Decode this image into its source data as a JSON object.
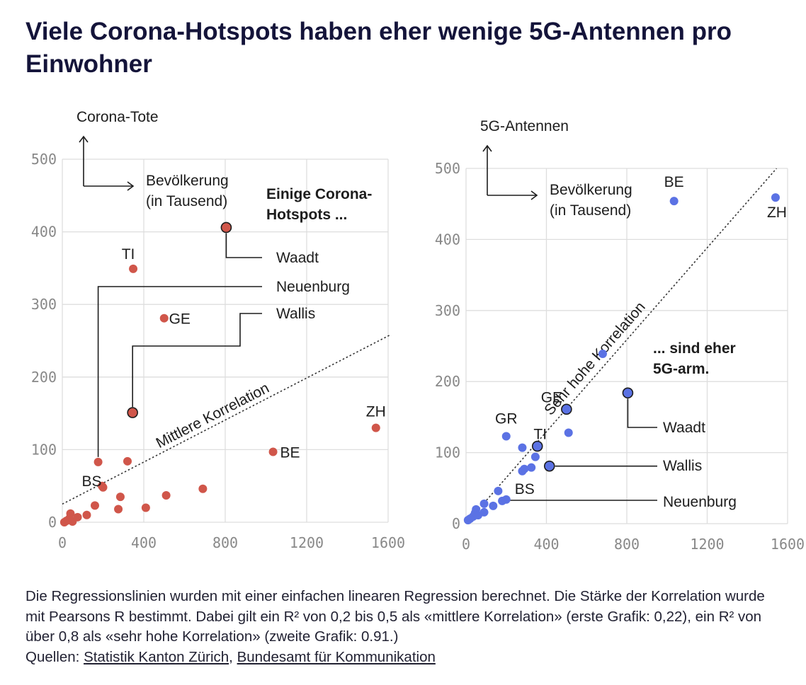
{
  "title": "Viele Corona-Hotspots haben eher wenige 5G-Antennen pro Einwohner",
  "footer": {
    "text": "Die Regressionslinien wurden mit einer einfachen linearen Regression berechnet. Die Stärke der Korrelation wurde mit Pearsons R bestimmt. Dabei gilt ein R² von 0,2 bis 0,5 als «mittlere Korrelation» (erste Grafik: 0,22), ein R² von über 0,8 als «sehr hohe Korrelation» (zweite Grafik: 0.91.)",
    "sources_label": "Quellen:",
    "source_1": "Statistik Kanton Zürich",
    "separator": ",",
    "source_2": "Bundesamt für Kommunikation"
  },
  "colors": {
    "left_points": "#d0564a",
    "right_points": "#5b72e4",
    "grid": "#dedede",
    "text": "#1d1d1d"
  },
  "chart_data": [
    {
      "type": "scatter",
      "ylabel": "Corona-Tote",
      "xlabel": "Bevölkerung (in Tausend)",
      "xlabel_lines": [
        "Bevölkerung",
        "(in Tausend)"
      ],
      "xlim": [
        0,
        1600
      ],
      "ylim": [
        0,
        500
      ],
      "xticks": [
        0,
        400,
        800,
        1200,
        1600
      ],
      "yticks": [
        0,
        100,
        200,
        300,
        400,
        500
      ],
      "grid": true,
      "regression": {
        "label": "Mittlere Korrelation",
        "x": [
          0,
          1610
        ],
        "y": [
          25,
          258
        ]
      },
      "note_lines": [
        "Einige Corona-",
        "Hotspots ..."
      ],
      "points": [
        {
          "x": 348,
          "y": 349,
          "label": "TI"
        },
        {
          "x": 500,
          "y": 281,
          "label": "GE"
        },
        {
          "x": 1035,
          "y": 97,
          "label": "BE"
        },
        {
          "x": 1540,
          "y": 130,
          "label": "ZH"
        },
        {
          "x": 200,
          "y": 48,
          "label": "BS"
        },
        {
          "x": 805,
          "y": 406,
          "label": "Waadt"
        },
        {
          "x": 176,
          "y": 83,
          "label": "Neuenburg"
        },
        {
          "x": 345,
          "y": 151,
          "label": "Wallis"
        },
        {
          "x": 320,
          "y": 84
        },
        {
          "x": 690,
          "y": 46
        },
        {
          "x": 510,
          "y": 37
        },
        {
          "x": 410,
          "y": 20
        },
        {
          "x": 285,
          "y": 35
        },
        {
          "x": 275,
          "y": 18
        },
        {
          "x": 160,
          "y": 23
        },
        {
          "x": 120,
          "y": 10
        },
        {
          "x": 75,
          "y": 7
        },
        {
          "x": 40,
          "y": 12
        },
        {
          "x": 35,
          "y": 5
        },
        {
          "x": 20,
          "y": 2
        },
        {
          "x": 50,
          "y": 1
        },
        {
          "x": 10,
          "y": 0
        },
        {
          "x": 195,
          "y": 50
        }
      ]
    },
    {
      "type": "scatter",
      "ylabel": "5G-Antennen",
      "xlabel": "Bevölkerung (in Tausend)",
      "xlabel_lines": [
        "Bevölkerung",
        "(in Tausend)"
      ],
      "xlim": [
        0,
        1600
      ],
      "ylim": [
        0,
        500
      ],
      "xticks": [
        0,
        400,
        800,
        1200,
        1600
      ],
      "yticks": [
        0,
        100,
        200,
        300,
        400,
        500
      ],
      "grid": true,
      "regression": {
        "label": "Sehr hohe Korrelation",
        "x": [
          0,
          1545
        ],
        "y": [
          0,
          500
        ]
      },
      "note_lines": [
        "... sind eher",
        "5G-arm."
      ],
      "points": [
        {
          "x": 1035,
          "y": 454,
          "label": "BE"
        },
        {
          "x": 1540,
          "y": 459,
          "label": "ZH"
        },
        {
          "x": 500,
          "y": 161,
          "label": "GE"
        },
        {
          "x": 200,
          "y": 123,
          "label": "GR"
        },
        {
          "x": 355,
          "y": 109,
          "label": "TI"
        },
        {
          "x": 200,
          "y": 34,
          "label": "BS"
        },
        {
          "x": 805,
          "y": 184,
          "label": "Waadt"
        },
        {
          "x": 415,
          "y": 81,
          "label": "Wallis"
        },
        {
          "x": 180,
          "y": 32,
          "label": "Neuenburg"
        },
        {
          "x": 680,
          "y": 239
        },
        {
          "x": 510,
          "y": 128
        },
        {
          "x": 280,
          "y": 107
        },
        {
          "x": 345,
          "y": 94
        },
        {
          "x": 325,
          "y": 79
        },
        {
          "x": 290,
          "y": 77
        },
        {
          "x": 280,
          "y": 74
        },
        {
          "x": 160,
          "y": 46
        },
        {
          "x": 90,
          "y": 28
        },
        {
          "x": 135,
          "y": 25
        },
        {
          "x": 90,
          "y": 16
        },
        {
          "x": 50,
          "y": 20
        },
        {
          "x": 45,
          "y": 15
        },
        {
          "x": 60,
          "y": 12
        },
        {
          "x": 35,
          "y": 10
        },
        {
          "x": 20,
          "y": 7
        },
        {
          "x": 10,
          "y": 5
        }
      ]
    }
  ]
}
